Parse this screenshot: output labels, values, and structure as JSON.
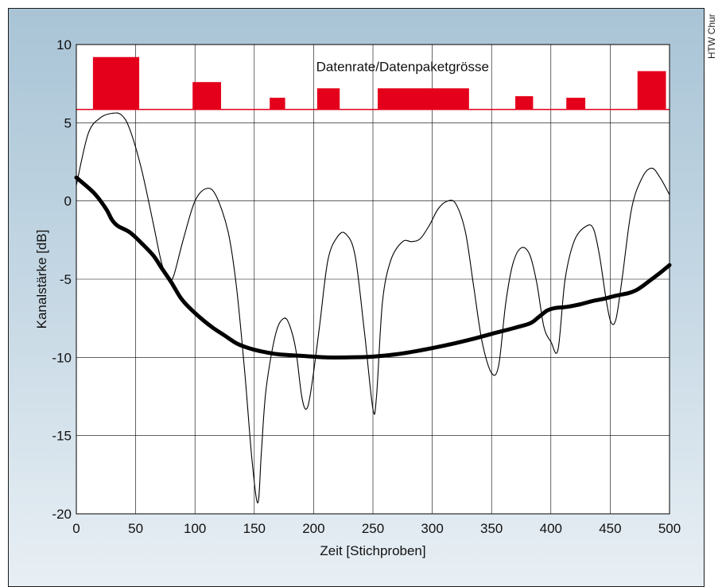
{
  "credit": "HTW Chur",
  "colors": {
    "bars": "#e4001b",
    "frame_gradient_top": "#a9c4d6",
    "frame_gradient_bottom": "#e8eff4",
    "plot_background": "#ffffff",
    "lines": "#000000"
  },
  "chart_data": {
    "type": "line",
    "title": "",
    "xlabel": "Zeit [Stichproben]",
    "ylabel": "Kanalstärke [dB]",
    "xlim": [
      0,
      500
    ],
    "ylim": [
      -20,
      10
    ],
    "xticks": [
      0,
      50,
      100,
      150,
      200,
      250,
      300,
      350,
      400,
      450,
      500
    ],
    "yticks": [
      10,
      5,
      0,
      -5,
      -10,
      -15,
      -20
    ],
    "grid": true,
    "legend": "none",
    "series": [
      {
        "style": "thin",
        "x": [
          0,
          10,
          20,
          30,
          38,
          45,
          55,
          65,
          72,
          78,
          82,
          90,
          100,
          110,
          118,
          128,
          135,
          142,
          148,
          153,
          156,
          160,
          168,
          175,
          180,
          185,
          190,
          194,
          198,
          205,
          212,
          220,
          227,
          235,
          243,
          250,
          253,
          258,
          265,
          275,
          283,
          290,
          298,
          305,
          313,
          320,
          328,
          335,
          342,
          350,
          356,
          362,
          368,
          375,
          382,
          388,
          394,
          400,
          406,
          412,
          420,
          430,
          436,
          441,
          447,
          451,
          455,
          460,
          468,
          477,
          485,
          492,
          500
        ],
        "y": [
          1.0,
          4.3,
          5.3,
          5.6,
          5.5,
          4.6,
          2.0,
          -1.5,
          -4.0,
          -5.0,
          -4.8,
          -2.5,
          0.0,
          0.8,
          0.3,
          -2.0,
          -5.5,
          -11.0,
          -16.5,
          -19.3,
          -16.0,
          -12.0,
          -8.5,
          -7.5,
          -8.0,
          -9.5,
          -12.5,
          -13.3,
          -12.0,
          -8.0,
          -3.8,
          -2.3,
          -2.1,
          -3.5,
          -8.5,
          -13.3,
          -12.5,
          -6.5,
          -3.8,
          -2.6,
          -2.6,
          -2.4,
          -1.5,
          -0.5,
          0.0,
          -0.2,
          -2.0,
          -5.5,
          -9.0,
          -11.0,
          -10.5,
          -6.5,
          -4.0,
          -3.0,
          -3.4,
          -5.2,
          -8.0,
          -9.0,
          -9.5,
          -5.0,
          -2.5,
          -1.6,
          -1.8,
          -3.5,
          -6.5,
          -7.8,
          -7.5,
          -5.0,
          -0.5,
          1.5,
          2.1,
          1.5,
          0.4
        ]
      },
      {
        "style": "thick",
        "x": [
          0,
          15,
          25,
          30,
          35,
          45,
          55,
          65,
          72,
          80,
          88,
          95,
          105,
          115,
          125,
          135,
          145,
          155,
          170,
          190,
          210,
          230,
          250,
          270,
          290,
          310,
          330,
          350,
          370,
          383,
          390,
          397,
          403,
          410,
          415,
          425,
          435,
          445,
          455,
          465,
          472,
          478,
          485,
          492,
          500
        ],
        "y": [
          1.5,
          0.5,
          -0.5,
          -1.2,
          -1.6,
          -2.0,
          -2.7,
          -3.5,
          -4.3,
          -5.2,
          -6.2,
          -6.8,
          -7.5,
          -8.1,
          -8.6,
          -9.1,
          -9.4,
          -9.6,
          -9.8,
          -9.9,
          -10.0,
          -10.0,
          -9.95,
          -9.8,
          -9.55,
          -9.25,
          -8.9,
          -8.5,
          -8.1,
          -7.8,
          -7.4,
          -7.0,
          -6.85,
          -6.8,
          -6.75,
          -6.6,
          -6.4,
          -6.25,
          -6.05,
          -5.9,
          -5.7,
          -5.4,
          -5.0,
          -4.6,
          -4.1
        ]
      }
    ],
    "annotation": "Datenrate/Datenpaketgrösse",
    "bars": [
      {
        "x_start": 14,
        "x_end": 53,
        "value": 9.2
      },
      {
        "x_start": 98,
        "x_end": 122,
        "value": 7.6
      },
      {
        "x_start": 163,
        "x_end": 176,
        "value": 6.6
      },
      {
        "x_start": 203,
        "x_end": 222,
        "value": 7.2
      },
      {
        "x_start": 254,
        "x_end": 331,
        "value": 7.2
      },
      {
        "x_start": 370,
        "x_end": 385,
        "value": 6.7
      },
      {
        "x_start": 413,
        "x_end": 429,
        "value": 6.6
      },
      {
        "x_start": 473,
        "x_end": 497,
        "value": 8.3
      }
    ],
    "bar_baseline": 5.85
  }
}
